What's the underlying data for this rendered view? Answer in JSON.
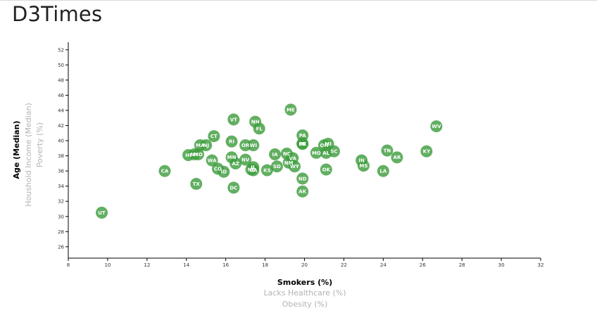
{
  "header": {
    "title": "D3Times"
  },
  "chart_data": {
    "type": "scatter",
    "title": "",
    "x_axis": {
      "active_label": "Smokers (%)",
      "inactive_labels": [
        "Lacks Healthcare (%)",
        "Obesity (%)"
      ],
      "range": [
        8,
        32
      ],
      "ticks": [
        8,
        10,
        12,
        14,
        16,
        18,
        20,
        22,
        24,
        26,
        28,
        30,
        32
      ]
    },
    "y_axis": {
      "active_label": "Age (Median)",
      "inactive_labels": [
        "Houshold Income (Median)",
        "Poverty (%)"
      ],
      "range": [
        24.5,
        53
      ],
      "ticks": [
        26,
        28,
        30,
        32,
        34,
        36,
        38,
        40,
        42,
        44,
        46,
        48,
        50,
        52
      ]
    },
    "grid": false,
    "points": [
      {
        "abbr": "UT",
        "x": 9.7,
        "y": 30.5
      },
      {
        "abbr": "CA",
        "x": 12.9,
        "y": 36.0
      },
      {
        "abbr": "HI",
        "x": 14.1,
        "y": 38.1
      },
      {
        "abbr": "NY",
        "x": 14.4,
        "y": 38.2
      },
      {
        "abbr": "MD",
        "x": 14.6,
        "y": 38.2
      },
      {
        "abbr": "MA",
        "x": 14.7,
        "y": 39.4
      },
      {
        "abbr": "NJ",
        "x": 15.0,
        "y": 39.4
      },
      {
        "abbr": "TX",
        "x": 14.5,
        "y": 34.3
      },
      {
        "abbr": "CT",
        "x": 15.4,
        "y": 40.6
      },
      {
        "abbr": "WA",
        "x": 15.3,
        "y": 37.4
      },
      {
        "abbr": "CO",
        "x": 15.6,
        "y": 36.3
      },
      {
        "abbr": "ID",
        "x": 15.9,
        "y": 35.9
      },
      {
        "abbr": "DC",
        "x": 16.4,
        "y": 33.8
      },
      {
        "abbr": "RI",
        "x": 16.3,
        "y": 39.9
      },
      {
        "abbr": "VT",
        "x": 16.4,
        "y": 42.8
      },
      {
        "abbr": "MN",
        "x": 16.3,
        "y": 37.8
      },
      {
        "abbr": "AZ",
        "x": 16.5,
        "y": 37.0
      },
      {
        "abbr": "OR",
        "x": 17.0,
        "y": 39.4
      },
      {
        "abbr": "WI",
        "x": 17.4,
        "y": 39.4
      },
      {
        "abbr": "NV",
        "x": 17.0,
        "y": 37.5
      },
      {
        "abbr": "NE",
        "x": 17.3,
        "y": 36.2
      },
      {
        "abbr": "IL",
        "x": 17.4,
        "y": 36.5
      },
      {
        "abbr": "GA",
        "x": 17.4,
        "y": 36.1
      },
      {
        "abbr": "NH",
        "x": 17.5,
        "y": 42.5
      },
      {
        "abbr": "FL",
        "x": 17.7,
        "y": 41.6
      },
      {
        "abbr": "KS",
        "x": 18.1,
        "y": 36.1
      },
      {
        "abbr": "SD",
        "x": 18.6,
        "y": 36.6
      },
      {
        "abbr": "IA",
        "x": 18.5,
        "y": 38.2
      },
      {
        "abbr": "NC",
        "x": 19.1,
        "y": 38.3
      },
      {
        "abbr": "NM",
        "x": 19.2,
        "y": 37.1
      },
      {
        "abbr": "VA",
        "x": 19.4,
        "y": 37.7
      },
      {
        "abbr": "WY",
        "x": 19.5,
        "y": 36.6
      },
      {
        "abbr": "ME",
        "x": 19.3,
        "y": 44.1
      },
      {
        "abbr": "PA",
        "x": 19.9,
        "y": 40.7
      },
      {
        "abbr": "MI",
        "x": 19.9,
        "y": 39.6
      },
      {
        "abbr": "DE",
        "x": 19.9,
        "y": 39.6
      },
      {
        "abbr": "ND",
        "x": 19.9,
        "y": 35.0
      },
      {
        "abbr": "AK",
        "x": 19.9,
        "y": 33.3
      },
      {
        "abbr": "MO",
        "x": 20.6,
        "y": 38.4
      },
      {
        "abbr": "AL",
        "x": 21.1,
        "y": 38.4
      },
      {
        "abbr": "OH",
        "x": 21.0,
        "y": 39.4
      },
      {
        "abbr": "MI",
        "x": 21.2,
        "y": 39.6
      },
      {
        "abbr": "SC",
        "x": 21.5,
        "y": 38.6
      },
      {
        "abbr": "OK",
        "x": 21.1,
        "y": 36.2
      },
      {
        "abbr": "IN",
        "x": 22.9,
        "y": 37.4
      },
      {
        "abbr": "MS",
        "x": 23.0,
        "y": 36.7
      },
      {
        "abbr": "LA",
        "x": 24.0,
        "y": 36.0
      },
      {
        "abbr": "TN",
        "x": 24.2,
        "y": 38.7
      },
      {
        "abbr": "AR",
        "x": 24.7,
        "y": 37.8
      },
      {
        "abbr": "KY",
        "x": 26.2,
        "y": 38.6
      },
      {
        "abbr": "WV",
        "x": 26.7,
        "y": 41.9
      }
    ]
  }
}
